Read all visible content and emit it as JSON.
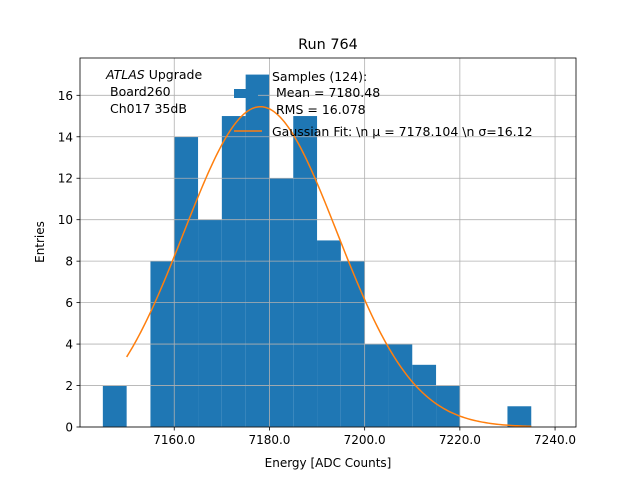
{
  "chart_data": {
    "type": "bar",
    "title": "Run 764",
    "xlabel": "Energy [ADC Counts]",
    "ylabel": "Entries",
    "xlim": [
      7140.2,
      7244.4
    ],
    "ylim": [
      0,
      17.8
    ],
    "grid": true,
    "xticks": [
      7160,
      7180,
      7200,
      7220,
      7240
    ],
    "xtick_labels": [
      "7160.0",
      "7180.0",
      "7200.0",
      "7220.0",
      "7240.0"
    ],
    "yticks": [
      0,
      2,
      4,
      6,
      8,
      10,
      12,
      14,
      16
    ],
    "ytick_labels": [
      "0",
      "2",
      "4",
      "6",
      "8",
      "10",
      "12",
      "14",
      "16"
    ],
    "histogram": {
      "bin_edges": [
        7145,
        7150,
        7155,
        7160,
        7165,
        7170,
        7175,
        7180,
        7185,
        7190,
        7195,
        7200,
        7205,
        7210,
        7215,
        7220,
        7225,
        7230,
        7235
      ],
      "counts": [
        2,
        0,
        8,
        14,
        10,
        15,
        17,
        12,
        15,
        9,
        8,
        4,
        4,
        3,
        2,
        0,
        0,
        1
      ],
      "color": "#1f77b4"
    },
    "fit": {
      "type": "gaussian",
      "mu": 7178.104,
      "sigma": 16.12,
      "amplitude": 15.45,
      "x_range": [
        7150,
        7235
      ],
      "color": "#ff7f0e"
    },
    "annotation": {
      "italic": "ATLAS",
      "rest": " Upgrade",
      "line2": "Board260",
      "line3": "Ch017 35dB"
    },
    "legend": {
      "placement": "top-right",
      "entries": [
        {
          "lines": [
            "Samples (124):",
            "Mean = 7180.48",
            "RMS = 16.078"
          ]
        },
        {
          "label": "Gaussian Fit: \\n μ = 7178.104 \\n σ=16.12"
        }
      ]
    }
  }
}
